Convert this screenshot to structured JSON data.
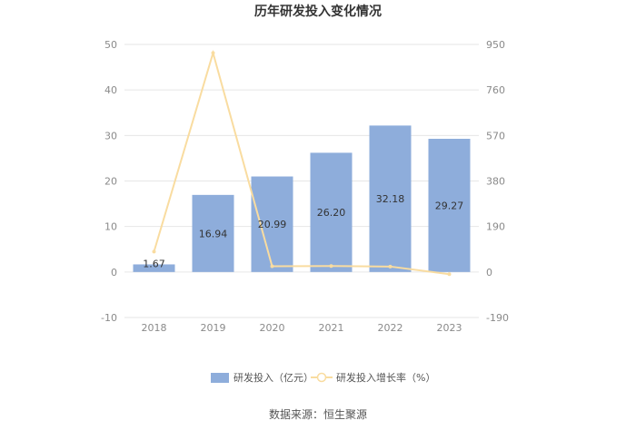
{
  "chart_data": {
    "type": "bar",
    "title": "历年研发投入变化情况",
    "categories": [
      "2018",
      "2019",
      "2020",
      "2021",
      "2022",
      "2023"
    ],
    "series": [
      {
        "name": "研发投入（亿元）",
        "type": "bar",
        "axis": "left",
        "color": "#8eaddb",
        "values": [
          1.67,
          16.94,
          20.99,
          26.2,
          32.18,
          29.27
        ],
        "labels": [
          "1.67",
          "16.94",
          "20.99",
          "26.20",
          "32.18",
          "29.27"
        ]
      },
      {
        "name": "研发投入增长率（%）",
        "type": "line",
        "axis": "right",
        "color": "#f9dca0",
        "values": [
          85,
          914.4,
          23.9,
          24.8,
          22.8,
          -9.0
        ]
      }
    ],
    "y_left": {
      "ylim": [
        -10,
        50
      ],
      "ticks": [
        "50",
        "40",
        "30",
        "20",
        "10",
        "0",
        "-10"
      ]
    },
    "y_right": {
      "ylim": [
        -190,
        950
      ],
      "ticks": [
        "950",
        "760",
        "570",
        "380",
        "190",
        "0",
        "-190"
      ]
    },
    "grid": true,
    "legend_position": "bottom",
    "source": "数据来源：恒生聚源"
  }
}
